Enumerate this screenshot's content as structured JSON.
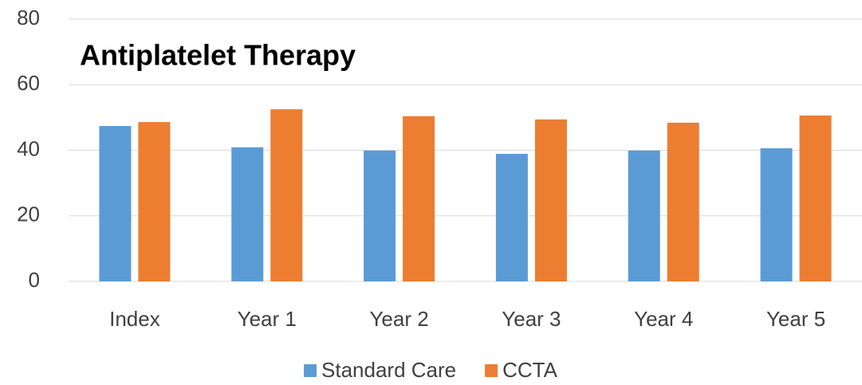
{
  "chart_data": {
    "type": "bar",
    "title": "Antiplatelet Therapy",
    "categories": [
      "Index",
      "Year 1",
      "Year 2",
      "Year 3",
      "Year 4",
      "Year 5"
    ],
    "series": [
      {
        "name": "Standard Care",
        "color": "#5b9bd5",
        "values": [
          47.4,
          40.9,
          39.9,
          38.9,
          39.9,
          40.6
        ]
      },
      {
        "name": "CCTA",
        "color": "#ed7d31",
        "values": [
          48.6,
          52.5,
          50.4,
          49.4,
          48.4,
          50.6
        ]
      }
    ],
    "ylim": [
      0,
      80
    ],
    "yticks": [
      0,
      20,
      40,
      60,
      80
    ],
    "grid": true,
    "legend": "bottom"
  }
}
